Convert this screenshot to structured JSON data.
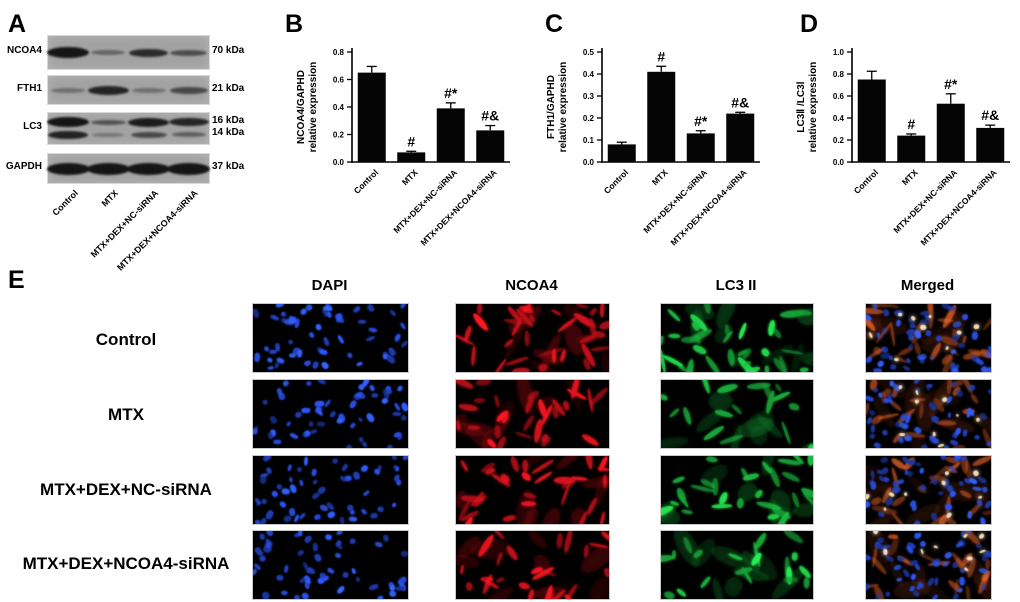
{
  "panelA": {
    "label": "A",
    "lanes": [
      "Control",
      "MTX",
      "MTX+DEX+NC-siRNA",
      "MTX+DEX+NCOA4-siRNA"
    ],
    "blots": [
      {
        "protein": "NCOA4",
        "kda": [
          "70 kDa"
        ],
        "bandRows": [
          {
            "yc": 0.5,
            "lanes": [
              [
                0.97,
                11,
                42
              ],
              [
                0.42,
                5,
                34
              ],
              [
                0.82,
                8,
                39
              ],
              [
                0.58,
                6,
                37
              ]
            ]
          }
        ]
      },
      {
        "protein": "FTH1",
        "kda": [
          "21 kDa"
        ],
        "bandRows": [
          {
            "yc": 0.52,
            "lanes": [
              [
                0.35,
                5,
                34
              ],
              [
                0.87,
                9,
                41
              ],
              [
                0.35,
                5,
                34
              ],
              [
                0.62,
                7,
                38
              ]
            ]
          }
        ]
      },
      {
        "protein": "LC3",
        "kda": [
          "16 kDa",
          "14 kDa"
        ],
        "bandRows": [
          {
            "yc": 0.3,
            "lanes": [
              [
                0.97,
                10,
                42
              ],
              [
                0.55,
                5,
                35
              ],
              [
                0.92,
                9,
                41
              ],
              [
                0.86,
                8,
                40
              ]
            ]
          },
          {
            "yc": 0.7,
            "lanes": [
              [
                0.88,
                8,
                40
              ],
              [
                0.3,
                4,
                32
              ],
              [
                0.62,
                6,
                36
              ],
              [
                0.46,
                5,
                34
              ]
            ]
          }
        ]
      },
      {
        "protein": "GAPDH",
        "kda": [
          "37 kDa"
        ],
        "bandRows": [
          {
            "yc": 0.5,
            "lanes": [
              [
                0.97,
                12,
                43
              ],
              [
                0.97,
                12,
                43
              ],
              [
                0.97,
                12,
                43
              ],
              [
                0.97,
                12,
                43
              ]
            ]
          }
        ]
      }
    ]
  },
  "chart_data": [
    {
      "panel": "B",
      "type": "bar",
      "categories": [
        "Control",
        "MTX",
        "MTX+DEX+NC-siRNA",
        "MTX+DEX+NCOA4-siRNA"
      ],
      "values": [
        0.65,
        0.07,
        0.39,
        0.23
      ],
      "errors": [
        0.045,
        0.008,
        0.04,
        0.035
      ],
      "annotations": [
        "",
        "#",
        "#*",
        "#&"
      ],
      "title": "",
      "xlabel": "",
      "ylabel": "NCOA4/GAPHD relative expression",
      "ylabel_lines": [
        "NCOA4/GAPHD",
        "relative expression"
      ],
      "yticks": [
        0,
        0.2,
        0.4,
        0.6,
        0.8
      ],
      "ylim": [
        0,
        0.8
      ],
      "tick_decimals": 1,
      "grid": false,
      "legend": null,
      "bar_color": "#050505"
    },
    {
      "panel": "C",
      "type": "bar",
      "categories": [
        "Control",
        "MTX",
        "MTX+DEX+NC-siRNA",
        "MTX+DEX+NCOA4-siRNA"
      ],
      "values": [
        0.08,
        0.41,
        0.13,
        0.22
      ],
      "errors": [
        0.01,
        0.025,
        0.012,
        0.006
      ],
      "annotations": [
        "",
        "#",
        "#*",
        "#&"
      ],
      "title": "",
      "xlabel": "",
      "ylabel": "FTH1/GAPHD relative expression",
      "ylabel_lines": [
        "FTH1/GAPHD",
        "relative expression"
      ],
      "yticks": [
        0,
        0.1,
        0.2,
        0.3,
        0.4,
        0.5
      ],
      "ylim": [
        0,
        0.5
      ],
      "tick_decimals": 1,
      "grid": false,
      "legend": null,
      "bar_color": "#050505"
    },
    {
      "panel": "D",
      "type": "bar",
      "categories": [
        "Control",
        "MTX",
        "MTX+DEX+NC-siRNA",
        "MTX+DEX+NCOA4-siRNA"
      ],
      "values": [
        0.75,
        0.24,
        0.53,
        0.31
      ],
      "errors": [
        0.075,
        0.015,
        0.09,
        0.025
      ],
      "annotations": [
        "",
        "#",
        "#*",
        "#&"
      ],
      "title": "",
      "xlabel": "",
      "ylabel": "LC3Ⅱ /LC3Ⅰ relative expression",
      "ylabel_lines": [
        "LC3Ⅱ /LC3Ⅰ",
        "relative expression"
      ],
      "yticks": [
        0,
        0.2,
        0.4,
        0.6,
        0.8,
        1.0
      ],
      "ylim": [
        0,
        1.0
      ],
      "tick_decimals": 1,
      "grid": false,
      "legend": null,
      "bar_color": "#050505"
    }
  ],
  "panelE": {
    "label": "E",
    "columns": [
      "DAPI",
      "NCOA4",
      "LC3 II",
      "Merged"
    ],
    "rows": [
      {
        "label": "Control",
        "red": 1.0,
        "green": 1.0
      },
      {
        "label": "MTX",
        "red": 0.85,
        "green": 0.5
      },
      {
        "label": "MTX+DEX+NC-siRNA",
        "red": 0.9,
        "green": 0.85
      },
      {
        "label": "MTX+DEX+NCOA4-siRNA",
        "red": 0.75,
        "green": 0.6
      }
    ],
    "colors": {
      "dapi": "#2b50e6",
      "ncoa4": "#d8141e",
      "lc3": "#1fc445",
      "merged_cyto": "#cf5a28",
      "bright_spot": "#ffe9c8"
    }
  }
}
